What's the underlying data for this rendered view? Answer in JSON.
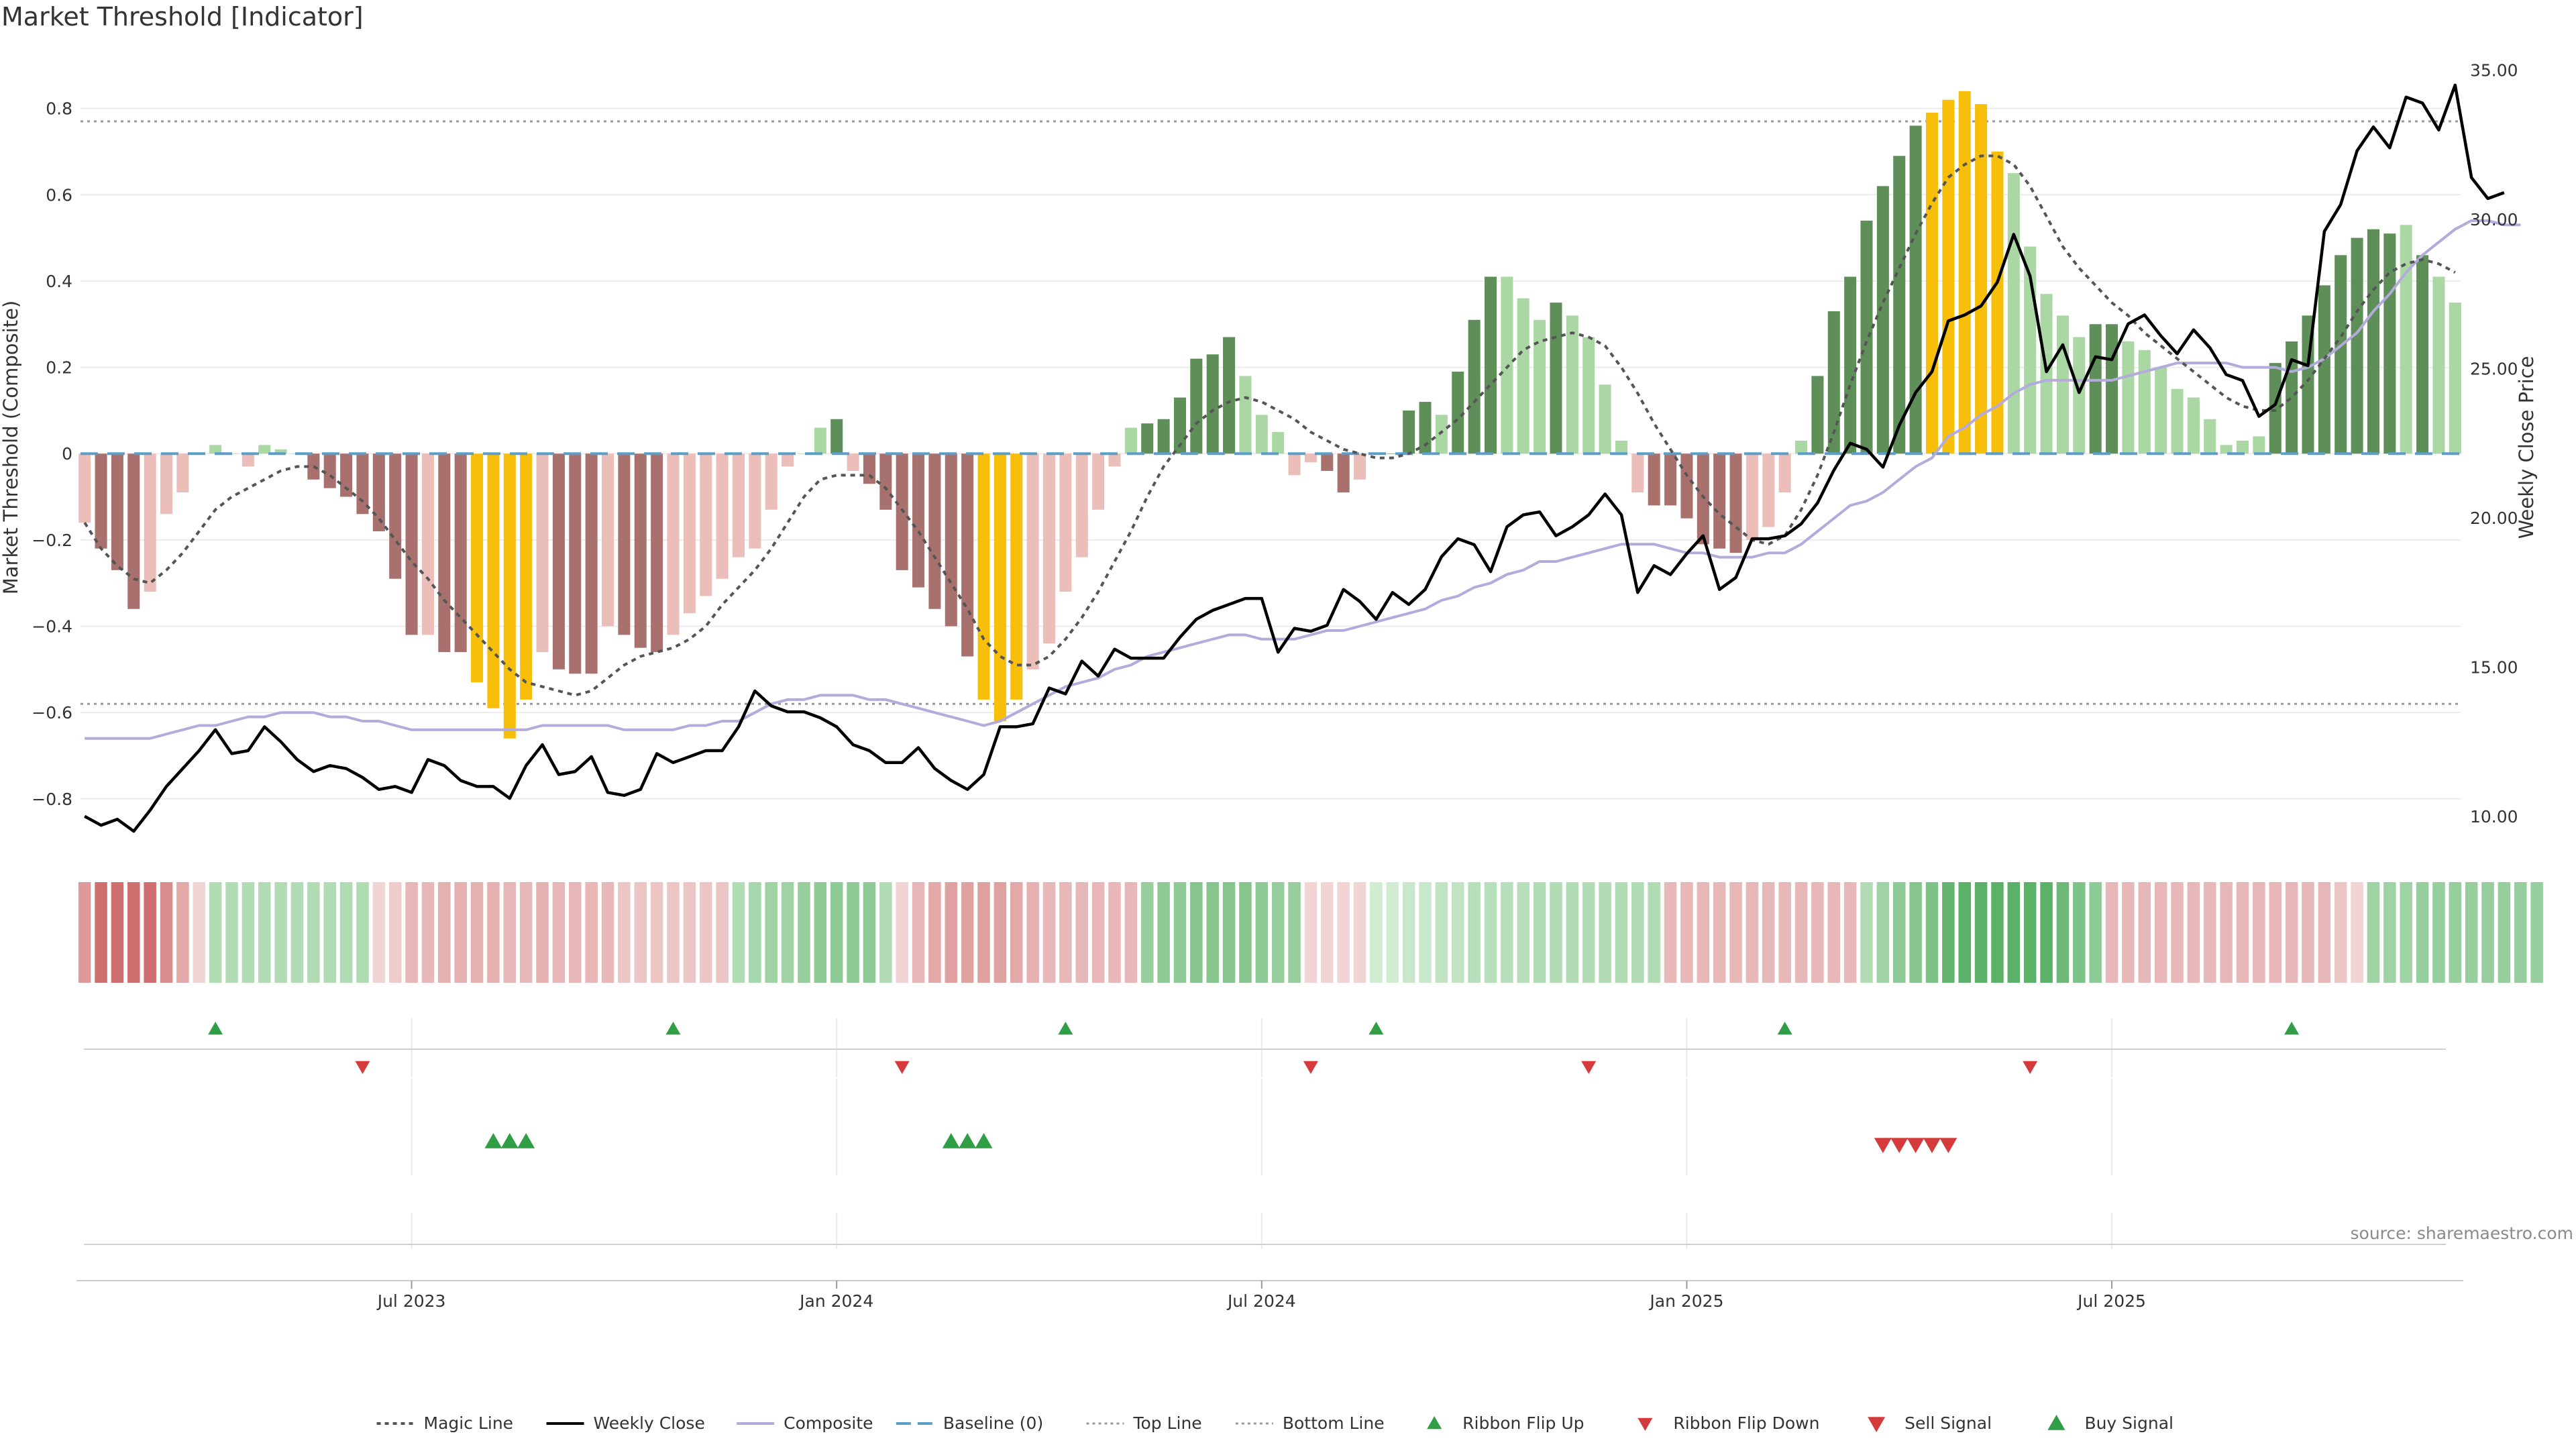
{
  "title": "Market Threshold [Indicator]",
  "source": "source: sharemaestro.com",
  "colors": {
    "bar_dark_red": "#a8716e",
    "bar_light_red": "#ebbeb9",
    "bar_dark_green": "#5e8f58",
    "bar_light_green": "#aad7a4",
    "bar_yellow": "#f7be0a",
    "weekly_close": "#000000",
    "composite": "#b3abdb",
    "magic_line": "#555555",
    "baseline": "#5b9fc9",
    "threshold_line": "#999999",
    "buy": "#2f9e44",
    "sell": "#d63b3b"
  },
  "chart_data": {
    "type": "bar",
    "ylabel_left": "Market Threshold (Composite)",
    "ylabel_right": "Weekly Close Price",
    "ylim_left": [
      -0.92,
      0.93
    ],
    "ylim_right": [
      8.85,
      35.6
    ],
    "yticks_left": [
      "0.8",
      "0.6",
      "0.4",
      "0.2",
      "0",
      "−0.2",
      "−0.4",
      "−0.6",
      "−0.8"
    ],
    "yticks_left_values": [
      0.8,
      0.6,
      0.4,
      0.2,
      0,
      -0.2,
      -0.4,
      -0.6,
      -0.8
    ],
    "yticks_right": [
      "35.00",
      "30.00",
      "25.00",
      "20.00",
      "15.00",
      "10.00"
    ],
    "yticks_right_values": [
      35,
      30,
      25,
      20,
      15,
      10
    ],
    "xticks": [
      {
        "label": "Jul 2023",
        "week": 20.5
      },
      {
        "label": "Jan 2024",
        "week": 46.5
      },
      {
        "label": "Jul 2024",
        "week": 72.5
      },
      {
        "label": "Jan 2025",
        "week": 98.5
      },
      {
        "label": "Jul 2025",
        "week": 124.5
      }
    ],
    "top_line": 0.77,
    "bottom_line": -0.58,
    "baseline": 0,
    "composite_bars": [
      -0.16,
      -0.22,
      -0.27,
      -0.36,
      -0.32,
      -0.14,
      -0.09,
      0,
      0.02,
      0,
      -0.03,
      0.02,
      0.01,
      0,
      -0.06,
      -0.08,
      -0.1,
      -0.14,
      -0.18,
      -0.29,
      -0.42,
      -0.42,
      -0.46,
      -0.46,
      -0.53,
      -0.59,
      -0.66,
      -0.57,
      -0.46,
      -0.5,
      -0.51,
      -0.51,
      -0.4,
      -0.42,
      -0.45,
      -0.46,
      -0.42,
      -0.37,
      -0.33,
      -0.29,
      -0.24,
      -0.22,
      -0.13,
      -0.03,
      0,
      0.06,
      0.08,
      -0.04,
      -0.07,
      -0.13,
      -0.27,
      -0.31,
      -0.36,
      -0.4,
      -0.47,
      -0.57,
      -0.62,
      -0.57,
      -0.5,
      -0.44,
      -0.32,
      -0.24,
      -0.13,
      -0.03,
      0.06,
      0.07,
      0.08,
      0.13,
      0.22,
      0.23,
      0.27,
      0.18,
      0.09,
      0.05,
      -0.05,
      -0.02,
      -0.04,
      -0.09,
      -0.06,
      0,
      0,
      0.1,
      0.12,
      0.09,
      0.19,
      0.31,
      0.41,
      0.41,
      0.36,
      0.31,
      0.35,
      0.32,
      0.27,
      0.16,
      0.03,
      -0.09,
      -0.12,
      -0.12,
      -0.15,
      -0.21,
      -0.22,
      -0.23,
      -0.2,
      -0.17,
      -0.09,
      0.03,
      0.18,
      0.33,
      0.41,
      0.54,
      0.62,
      0.69,
      0.76,
      0.79,
      0.82,
      0.84,
      0.81,
      0.7,
      0.65,
      0.48,
      0.37,
      0.32,
      0.27,
      0.3,
      0.3,
      0.26,
      0.24,
      0.2,
      0.15,
      0.13,
      0.08,
      0.02,
      0.03,
      0.04,
      0.21,
      0.26,
      0.32,
      0.39,
      0.46,
      0.5,
      0.52,
      0.51,
      0.53,
      0.46,
      0.41,
      0.35
    ],
    "bar_colors": [
      "light_red",
      "dark_red",
      "dark_red",
      "dark_red",
      "light_red",
      "light_red",
      "light_red",
      "light_green",
      "light_green",
      "light_green",
      "light_red",
      "light_green",
      "light_green",
      "light_green",
      "dark_red",
      "dark_red",
      "dark_red",
      "dark_red",
      "dark_red",
      "dark_red",
      "dark_red",
      "light_red",
      "dark_red",
      "dark_red",
      "yellow",
      "yellow",
      "yellow",
      "yellow",
      "light_red",
      "dark_red",
      "dark_red",
      "dark_red",
      "light_red",
      "dark_red",
      "dark_red",
      "dark_red",
      "light_red",
      "light_red",
      "light_red",
      "light_red",
      "light_red",
      "light_red",
      "light_red",
      "light_red",
      "light_green",
      "light_green",
      "dark_green",
      "light_red",
      "dark_red",
      "dark_red",
      "dark_red",
      "dark_red",
      "dark_red",
      "dark_red",
      "dark_red",
      "yellow",
      "yellow",
      "yellow",
      "light_red",
      "light_red",
      "light_red",
      "light_red",
      "light_red",
      "light_red",
      "light_green",
      "dark_green",
      "dark_green",
      "dark_green",
      "dark_green",
      "dark_green",
      "dark_green",
      "light_green",
      "light_green",
      "light_green",
      "light_red",
      "light_red",
      "dark_red",
      "dark_red",
      "light_red",
      "light_green",
      "dark_green",
      "dark_green",
      "dark_green",
      "light_green",
      "dark_green",
      "dark_green",
      "dark_green",
      "light_green",
      "light_green",
      "light_green",
      "dark_green",
      "light_green",
      "light_green",
      "light_green",
      "light_green",
      "light_red",
      "dark_red",
      "dark_red",
      "dark_red",
      "dark_red",
      "dark_red",
      "dark_red",
      "light_red",
      "light_red",
      "light_red",
      "light_green",
      "dark_green",
      "dark_green",
      "dark_green",
      "dark_green",
      "dark_green",
      "dark_green",
      "dark_green",
      "yellow",
      "yellow",
      "yellow",
      "yellow",
      "yellow",
      "light_green",
      "light_green",
      "light_green",
      "light_green",
      "light_green",
      "dark_green",
      "dark_green",
      "light_green",
      "light_green",
      "light_green",
      "light_green",
      "light_green",
      "light_green",
      "light_green",
      "light_green",
      "light_green",
      "dark_green",
      "dark_green",
      "dark_green",
      "dark_green",
      "dark_green",
      "dark_green",
      "dark_green",
      "dark_green",
      "light_green",
      "dark_green",
      "light_green",
      "light_green",
      "light_green"
    ],
    "weekly_close": [
      10.0,
      9.7,
      9.9,
      9.5,
      10.2,
      11.0,
      11.6,
      12.2,
      12.9,
      12.1,
      12.2,
      13.0,
      12.5,
      11.9,
      11.5,
      11.7,
      11.6,
      11.3,
      10.9,
      11.0,
      10.8,
      11.9,
      11.7,
      11.2,
      11.0,
      11.0,
      10.6,
      11.7,
      12.4,
      11.4,
      11.5,
      12.0,
      10.8,
      10.7,
      10.9,
      12.1,
      11.8,
      12.0,
      12.2,
      12.2,
      13.0,
      14.2,
      13.7,
      13.5,
      13.5,
      13.3,
      13.0,
      12.4,
      12.2,
      11.8,
      11.8,
      12.3,
      11.6,
      11.2,
      10.9,
      11.4,
      13.0,
      13.0,
      13.1,
      14.3,
      14.1,
      15.2,
      14.7,
      15.6,
      15.3,
      15.3,
      15.3,
      16.0,
      16.6,
      16.9,
      17.1,
      17.3,
      17.3,
      15.5,
      16.3,
      16.2,
      16.4,
      17.6,
      17.2,
      16.6,
      17.5,
      17.1,
      17.6,
      18.7,
      19.3,
      19.1,
      18.2,
      19.7,
      20.1,
      20.2,
      19.4,
      19.7,
      20.1,
      20.8,
      20.1,
      17.5,
      18.4,
      18.1,
      18.8,
      19.4,
      17.6,
      18.0,
      19.3,
      19.3,
      19.4,
      19.8,
      20.5,
      21.6,
      22.5,
      22.3,
      21.7,
      23.1,
      24.2,
      24.9,
      26.6,
      26.8,
      27.1,
      27.9,
      29.5,
      28.1,
      24.9,
      25.8,
      24.2,
      25.4,
      25.3,
      26.5,
      26.8,
      26.1,
      25.5,
      26.3,
      25.7,
      24.8,
      24.6,
      23.4,
      23.8,
      25.3,
      25.1,
      29.6,
      30.5,
      32.3,
      33.1,
      32.4,
      34.1,
      33.9,
      33.0,
      34.5,
      31.4,
      30.7,
      30.9
    ],
    "composite_line": [
      -0.66,
      -0.66,
      -0.66,
      -0.66,
      -0.66,
      -0.65,
      -0.64,
      -0.63,
      -0.63,
      -0.62,
      -0.61,
      -0.61,
      -0.6,
      -0.6,
      -0.6,
      -0.61,
      -0.61,
      -0.62,
      -0.62,
      -0.63,
      -0.64,
      -0.64,
      -0.64,
      -0.64,
      -0.64,
      -0.64,
      -0.64,
      -0.64,
      -0.63,
      -0.63,
      -0.63,
      -0.63,
      -0.63,
      -0.64,
      -0.64,
      -0.64,
      -0.64,
      -0.63,
      -0.63,
      -0.62,
      -0.62,
      -0.6,
      -0.58,
      -0.57,
      -0.57,
      -0.56,
      -0.56,
      -0.56,
      -0.57,
      -0.57,
      -0.58,
      -0.59,
      -0.6,
      -0.61,
      -0.62,
      -0.63,
      -0.62,
      -0.6,
      -0.58,
      -0.56,
      -0.54,
      -0.53,
      -0.52,
      -0.5,
      -0.49,
      -0.47,
      -0.46,
      -0.45,
      -0.44,
      -0.43,
      -0.42,
      -0.42,
      -0.43,
      -0.43,
      -0.43,
      -0.42,
      -0.41,
      -0.41,
      -0.4,
      -0.39,
      -0.38,
      -0.37,
      -0.36,
      -0.34,
      -0.33,
      -0.31,
      -0.3,
      -0.28,
      -0.27,
      -0.25,
      -0.25,
      -0.24,
      -0.23,
      -0.22,
      -0.21,
      -0.21,
      -0.21,
      -0.22,
      -0.23,
      -0.23,
      -0.24,
      -0.24,
      -0.24,
      -0.23,
      -0.23,
      -0.21,
      -0.18,
      -0.15,
      -0.12,
      -0.11,
      -0.09,
      -0.06,
      -0.03,
      -0.01,
      0.04,
      0.06,
      0.09,
      0.11,
      0.14,
      0.16,
      0.17,
      0.17,
      0.17,
      0.17,
      0.17,
      0.18,
      0.19,
      0.2,
      0.21,
      0.21,
      0.21,
      0.21,
      0.2,
      0.2,
      0.2,
      0.19,
      0.2,
      0.22,
      0.25,
      0.28,
      0.33,
      0.37,
      0.42,
      0.46,
      0.49,
      0.52,
      0.54,
      0.54,
      0.53,
      0.53
    ],
    "magic_line": [
      -0.16,
      -0.22,
      -0.26,
      -0.29,
      -0.3,
      -0.27,
      -0.23,
      -0.18,
      -0.13,
      -0.1,
      -0.08,
      -0.06,
      -0.04,
      -0.03,
      -0.03,
      -0.05,
      -0.08,
      -0.11,
      -0.15,
      -0.2,
      -0.25,
      -0.29,
      -0.34,
      -0.38,
      -0.42,
      -0.46,
      -0.5,
      -0.53,
      -0.54,
      -0.55,
      -0.56,
      -0.55,
      -0.52,
      -0.49,
      -0.47,
      -0.46,
      -0.45,
      -0.43,
      -0.4,
      -0.35,
      -0.31,
      -0.27,
      -0.22,
      -0.16,
      -0.1,
      -0.06,
      -0.05,
      -0.05,
      -0.05,
      -0.08,
      -0.13,
      -0.18,
      -0.24,
      -0.3,
      -0.36,
      -0.43,
      -0.47,
      -0.49,
      -0.49,
      -0.47,
      -0.43,
      -0.38,
      -0.32,
      -0.25,
      -0.18,
      -0.1,
      -0.03,
      0.02,
      0.07,
      0.1,
      0.12,
      0.13,
      0.12,
      0.1,
      0.08,
      0.05,
      0.03,
      0.01,
      0,
      -0.01,
      -0.01,
      0,
      0.02,
      0.05,
      0.08,
      0.12,
      0.16,
      0.2,
      0.24,
      0.26,
      0.27,
      0.28,
      0.27,
      0.25,
      0.2,
      0.14,
      0.07,
      0.01,
      -0.05,
      -0.1,
      -0.14,
      -0.17,
      -0.2,
      -0.21,
      -0.19,
      -0.13,
      -0.05,
      0.05,
      0.16,
      0.26,
      0.35,
      0.43,
      0.51,
      0.58,
      0.64,
      0.67,
      0.69,
      0.69,
      0.67,
      0.62,
      0.55,
      0.48,
      0.43,
      0.39,
      0.35,
      0.32,
      0.28,
      0.25,
      0.22,
      0.19,
      0.16,
      0.13,
      0.11,
      0.1,
      0.1,
      0.13,
      0.17,
      0.22,
      0.27,
      0.33,
      0.38,
      0.42,
      0.44,
      0.45,
      0.44,
      0.42
    ],
    "ribbon_heat": [
      -0.5,
      -0.8,
      -0.8,
      -0.8,
      -0.8,
      -0.6,
      -0.4,
      -0.1,
      0.3,
      0.3,
      0.3,
      0.3,
      0.3,
      0.3,
      0.3,
      0.3,
      0.3,
      0.3,
      -0.1,
      -0.15,
      -0.3,
      -0.3,
      -0.35,
      -0.35,
      -0.35,
      -0.35,
      -0.3,
      -0.3,
      -0.35,
      -0.3,
      -0.3,
      -0.3,
      -0.3,
      -0.2,
      -0.2,
      -0.2,
      -0.2,
      -0.2,
      -0.2,
      -0.2,
      0.3,
      0.35,
      0.4,
      0.4,
      0.45,
      0.5,
      0.5,
      0.5,
      0.5,
      0.3,
      -0.1,
      -0.3,
      -0.4,
      -0.45,
      -0.45,
      -0.45,
      -0.45,
      -0.4,
      -0.35,
      -0.3,
      -0.3,
      -0.3,
      -0.3,
      -0.3,
      -0.3,
      0.45,
      0.5,
      0.5,
      0.55,
      0.55,
      0.55,
      0.55,
      0.5,
      0.45,
      0.45,
      -0.1,
      -0.1,
      -0.1,
      -0.1,
      0.1,
      0.1,
      0.15,
      0.15,
      0.2,
      0.2,
      0.25,
      0.25,
      0.25,
      0.25,
      0.3,
      0.3,
      0.3,
      0.3,
      0.3,
      0.3,
      0.3,
      0.3,
      -0.3,
      -0.3,
      -0.3,
      -0.3,
      -0.3,
      -0.3,
      -0.3,
      -0.3,
      -0.3,
      -0.3,
      -0.3,
      -0.3,
      0.3,
      0.4,
      0.5,
      0.55,
      0.6,
      0.75,
      0.8,
      0.8,
      0.8,
      0.8,
      0.8,
      0.8,
      0.7,
      0.6,
      0.5,
      -0.3,
      -0.3,
      -0.3,
      -0.3,
      -0.3,
      -0.3,
      -0.3,
      -0.3,
      -0.3,
      -0.3,
      -0.3,
      -0.3,
      -0.3,
      -0.3,
      -0.2,
      -0.1,
      0.4,
      0.4,
      0.4,
      0.45,
      0.45,
      0.45,
      0.45,
      0.45,
      0.45,
      0.45,
      0.45
    ],
    "ribbon_flip_up_weeks": [
      8,
      36,
      60,
      79,
      104,
      135
    ],
    "ribbon_flip_down_weeks": [
      17,
      50,
      75,
      92,
      119
    ],
    "buy_signal_weeks": [
      25,
      26,
      27,
      53,
      54,
      55
    ],
    "sell_signal_weeks": [
      110,
      111,
      112,
      113,
      114
    ]
  },
  "legend": [
    {
      "key": "magic",
      "label": "Magic Line"
    },
    {
      "key": "close",
      "label": "Weekly Close"
    },
    {
      "key": "composite",
      "label": "Composite"
    },
    {
      "key": "baseline",
      "label": "Baseline (0)"
    },
    {
      "key": "top",
      "label": "Top Line"
    },
    {
      "key": "bottom",
      "label": "Bottom Line"
    },
    {
      "key": "flipup",
      "label": "Ribbon Flip Up"
    },
    {
      "key": "flipdown",
      "label": "Ribbon Flip Down"
    },
    {
      "key": "sell",
      "label": "Sell Signal"
    },
    {
      "key": "buy",
      "label": "Buy Signal"
    }
  ]
}
